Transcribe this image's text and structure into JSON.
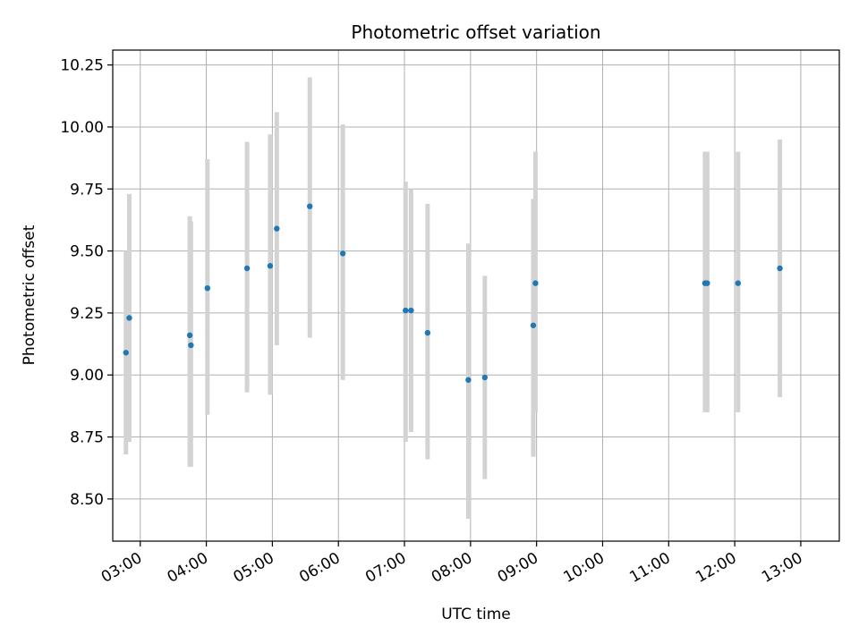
{
  "chart_data": {
    "type": "scatter",
    "title": "Photometric offset variation",
    "xlabel": "UTC time",
    "ylabel": "Photometric offset",
    "x_axis": {
      "kind": "time",
      "range": [
        "02:35",
        "13:35"
      ],
      "tick_labels": [
        "03:00",
        "04:00",
        "05:00",
        "06:00",
        "07:00",
        "08:00",
        "09:00",
        "10:00",
        "11:00",
        "12:00",
        "13:00"
      ]
    },
    "y_axis": {
      "range": [
        8.33,
        10.31
      ],
      "tick_values": [
        8.5,
        8.75,
        9.0,
        9.25,
        9.5,
        9.75,
        10.0,
        10.25
      ],
      "tick_labels": [
        "8.50",
        "8.75",
        "9.00",
        "9.25",
        "9.50",
        "9.75",
        "10.00",
        "10.25"
      ]
    },
    "grid": true,
    "colors": {
      "point": "#1f77b4",
      "errorbar": "#d3d3d3",
      "grid": "#b0b0b0"
    },
    "points": [
      {
        "x": "02:47",
        "y": 9.09,
        "yerr_low": 8.68,
        "yerr_high": 9.5
      },
      {
        "x": "02:50",
        "y": 9.23,
        "yerr_low": 8.73,
        "yerr_high": 9.73
      },
      {
        "x": "03:45",
        "y": 9.16,
        "yerr_low": 8.63,
        "yerr_high": 9.64
      },
      {
        "x": "03:46",
        "y": 9.12,
        "yerr_low": 8.63,
        "yerr_high": 9.62
      },
      {
        "x": "04:01",
        "y": 9.35,
        "yerr_low": 8.84,
        "yerr_high": 9.87
      },
      {
        "x": "04:37",
        "y": 9.43,
        "yerr_low": 8.93,
        "yerr_high": 9.94
      },
      {
        "x": "04:58",
        "y": 9.44,
        "yerr_low": 8.92,
        "yerr_high": 9.97
      },
      {
        "x": "05:04",
        "y": 9.59,
        "yerr_low": 9.12,
        "yerr_high": 10.06
      },
      {
        "x": "05:34",
        "y": 9.68,
        "yerr_low": 9.15,
        "yerr_high": 10.2
      },
      {
        "x": "06:04",
        "y": 9.49,
        "yerr_low": 8.98,
        "yerr_high": 10.01
      },
      {
        "x": "07:01",
        "y": 9.26,
        "yerr_low": 8.73,
        "yerr_high": 9.78
      },
      {
        "x": "07:06",
        "y": 9.26,
        "yerr_low": 8.77,
        "yerr_high": 9.75
      },
      {
        "x": "07:21",
        "y": 9.17,
        "yerr_low": 8.66,
        "yerr_high": 9.69
      },
      {
        "x": "07:58",
        "y": 8.98,
        "yerr_low": 8.42,
        "yerr_high": 9.53
      },
      {
        "x": "08:13",
        "y": 8.99,
        "yerr_low": 8.58,
        "yerr_high": 9.4
      },
      {
        "x": "08:57",
        "y": 9.2,
        "yerr_low": 8.67,
        "yerr_high": 9.71
      },
      {
        "x": "08:59",
        "y": 9.37,
        "yerr_low": 8.85,
        "yerr_high": 9.9
      },
      {
        "x": "11:33",
        "y": 9.37,
        "yerr_low": 8.85,
        "yerr_high": 9.9
      },
      {
        "x": "11:35",
        "y": 9.37,
        "yerr_low": 8.85,
        "yerr_high": 9.9
      },
      {
        "x": "12:03",
        "y": 9.37,
        "yerr_low": 8.85,
        "yerr_high": 9.9
      },
      {
        "x": "12:41",
        "y": 9.43,
        "yerr_low": 8.91,
        "yerr_high": 9.95
      }
    ]
  }
}
